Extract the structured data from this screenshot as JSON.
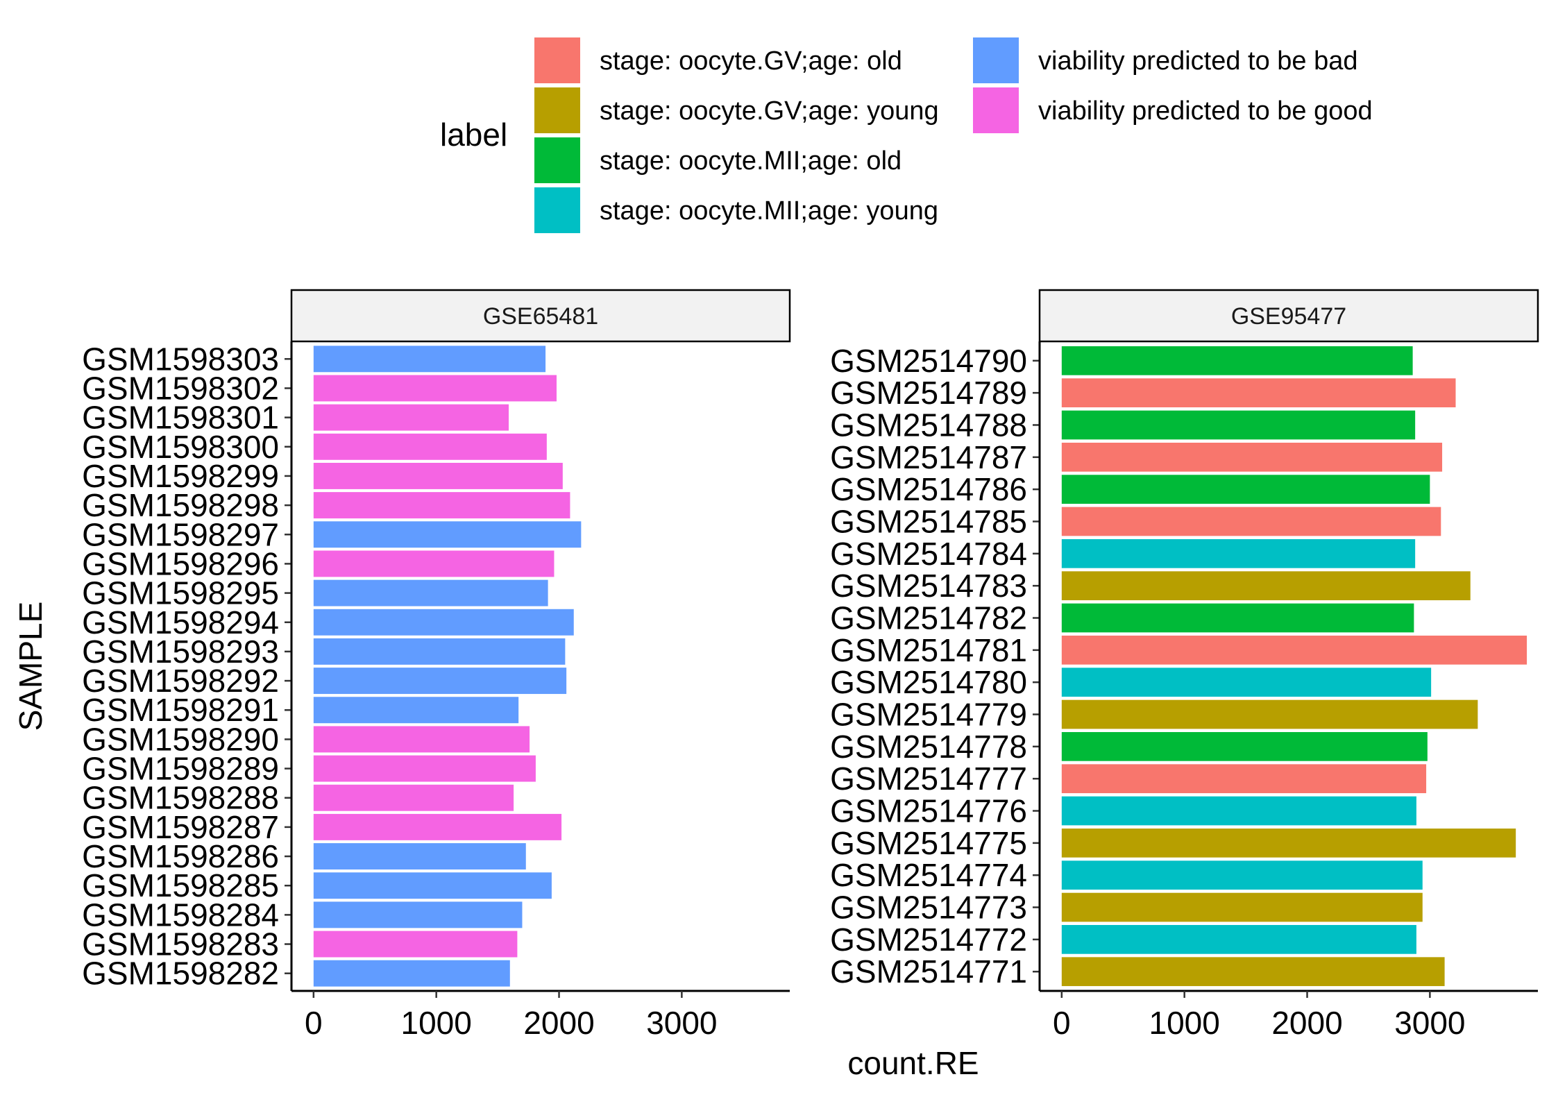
{
  "chart_data": {
    "type": "bar",
    "orientation": "horizontal",
    "xlabel": "count.RE",
    "ylabel": "SAMPLE",
    "xlim": [
      -180,
      3880
    ],
    "x_ticks": [
      0,
      1000,
      2000,
      3000
    ],
    "grid": false,
    "legend": {
      "title": "label",
      "position": "top",
      "items": [
        {
          "key": "gv_old",
          "label": "stage: oocyte.GV;age: old",
          "color": "#F8766D"
        },
        {
          "key": "gv_young",
          "label": "stage: oocyte.GV;age: young",
          "color": "#B79F00"
        },
        {
          "key": "mii_old",
          "label": "stage: oocyte.MII;age: old",
          "color": "#00BA38"
        },
        {
          "key": "mii_young",
          "label": "stage: oocyte.MII;age: young",
          "color": "#00BFC4"
        },
        {
          "key": "bad",
          "label": "viability predicted to be bad",
          "color": "#619CFF"
        },
        {
          "key": "good",
          "label": "viability predicted to be good",
          "color": "#F564E3"
        }
      ]
    },
    "panels": [
      {
        "title": "GSE65481",
        "bars": [
          {
            "sample": "GSM1598303",
            "value": 1890,
            "label": "bad"
          },
          {
            "sample": "GSM1598302",
            "value": 1980,
            "label": "good"
          },
          {
            "sample": "GSM1598301",
            "value": 1590,
            "label": "good"
          },
          {
            "sample": "GSM1598300",
            "value": 1900,
            "label": "good"
          },
          {
            "sample": "GSM1598299",
            "value": 2030,
            "label": "good"
          },
          {
            "sample": "GSM1598298",
            "value": 2090,
            "label": "good"
          },
          {
            "sample": "GSM1598297",
            "value": 2180,
            "label": "bad"
          },
          {
            "sample": "GSM1598296",
            "value": 1960,
            "label": "good"
          },
          {
            "sample": "GSM1598295",
            "value": 1910,
            "label": "bad"
          },
          {
            "sample": "GSM1598294",
            "value": 2120,
            "label": "bad"
          },
          {
            "sample": "GSM1598293",
            "value": 2050,
            "label": "bad"
          },
          {
            "sample": "GSM1598292",
            "value": 2060,
            "label": "bad"
          },
          {
            "sample": "GSM1598291",
            "value": 1670,
            "label": "bad"
          },
          {
            "sample": "GSM1598290",
            "value": 1760,
            "label": "good"
          },
          {
            "sample": "GSM1598289",
            "value": 1810,
            "label": "good"
          },
          {
            "sample": "GSM1598288",
            "value": 1630,
            "label": "good"
          },
          {
            "sample": "GSM1598287",
            "value": 2020,
            "label": "good"
          },
          {
            "sample": "GSM1598286",
            "value": 1730,
            "label": "bad"
          },
          {
            "sample": "GSM1598285",
            "value": 1940,
            "label": "bad"
          },
          {
            "sample": "GSM1598284",
            "value": 1700,
            "label": "bad"
          },
          {
            "sample": "GSM1598283",
            "value": 1660,
            "label": "good"
          },
          {
            "sample": "GSM1598282",
            "value": 1600,
            "label": "bad"
          }
        ]
      },
      {
        "title": "GSE95477",
        "bars": [
          {
            "sample": "GSM2514790",
            "value": 2860,
            "label": "mii_old"
          },
          {
            "sample": "GSM2514789",
            "value": 3210,
            "label": "gv_old"
          },
          {
            "sample": "GSM2514788",
            "value": 2880,
            "label": "mii_old"
          },
          {
            "sample": "GSM2514787",
            "value": 3100,
            "label": "gv_old"
          },
          {
            "sample": "GSM2514786",
            "value": 3000,
            "label": "mii_old"
          },
          {
            "sample": "GSM2514785",
            "value": 3090,
            "label": "gv_old"
          },
          {
            "sample": "GSM2514784",
            "value": 2880,
            "label": "mii_young"
          },
          {
            "sample": "GSM2514783",
            "value": 3330,
            "label": "gv_young"
          },
          {
            "sample": "GSM2514782",
            "value": 2870,
            "label": "mii_old"
          },
          {
            "sample": "GSM2514781",
            "value": 3790,
            "label": "gv_old"
          },
          {
            "sample": "GSM2514780",
            "value": 3010,
            "label": "mii_young"
          },
          {
            "sample": "GSM2514779",
            "value": 3390,
            "label": "gv_young"
          },
          {
            "sample": "GSM2514778",
            "value": 2980,
            "label": "mii_old"
          },
          {
            "sample": "GSM2514777",
            "value": 2970,
            "label": "gv_old"
          },
          {
            "sample": "GSM2514776",
            "value": 2890,
            "label": "mii_young"
          },
          {
            "sample": "GSM2514775",
            "value": 3700,
            "label": "gv_young"
          },
          {
            "sample": "GSM2514774",
            "value": 2940,
            "label": "mii_young"
          },
          {
            "sample": "GSM2514773",
            "value": 2940,
            "label": "gv_young"
          },
          {
            "sample": "GSM2514772",
            "value": 2890,
            "label": "mii_young"
          },
          {
            "sample": "GSM2514771",
            "value": 3120,
            "label": "gv_young"
          }
        ]
      }
    ]
  }
}
